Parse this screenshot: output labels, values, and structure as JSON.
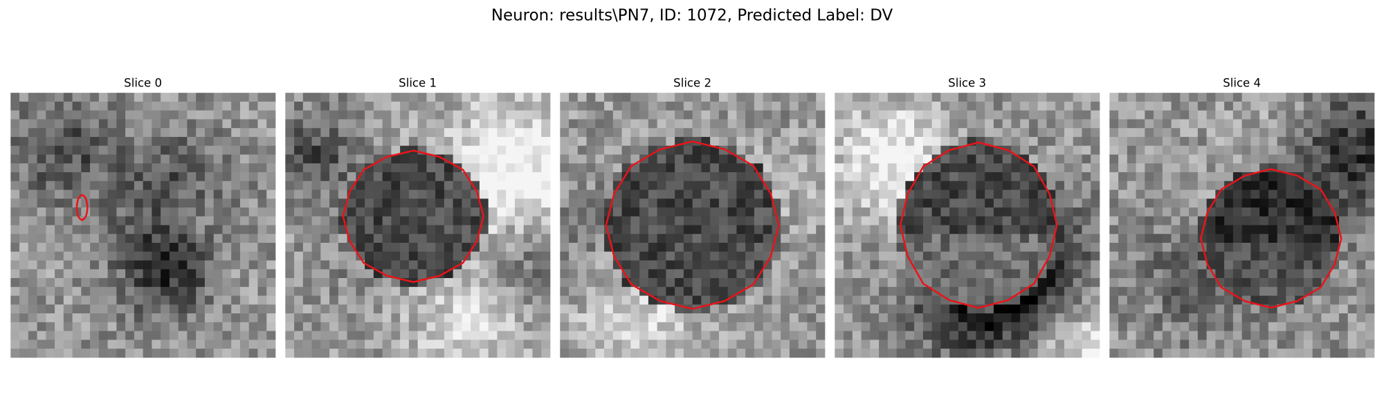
{
  "title": "Neuron: results\\PN7, ID: 1072, Predicted Label: DV",
  "panels": [
    {
      "title": "Slice 0"
    },
    {
      "title": "Slice 1"
    },
    {
      "title": "Slice 2"
    },
    {
      "title": "Slice 3"
    },
    {
      "title": "Slice 4"
    }
  ]
}
